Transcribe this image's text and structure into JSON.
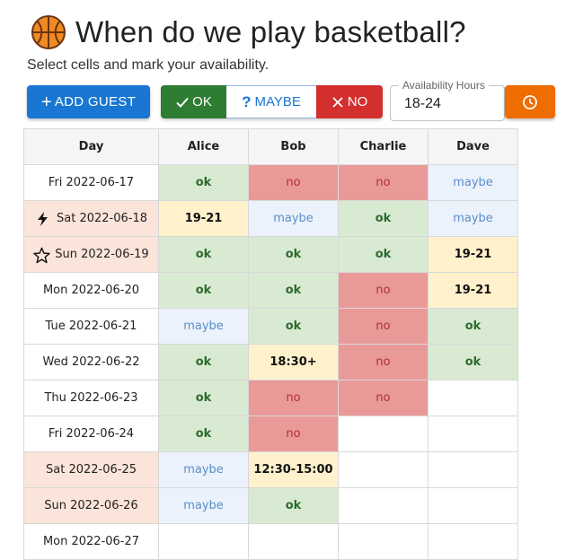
{
  "header": {
    "title": "When do we play basketball?",
    "icon": "basketball-icon",
    "subtitle": "Select cells and mark your availability."
  },
  "toolbar": {
    "add_guest_label": "ADD GUEST",
    "ok_label": "OK",
    "maybe_label": "MAYBE",
    "no_label": "NO",
    "availability_label": "Availability Hours",
    "availability_value": "18-24",
    "clock_icon": "clock-icon"
  },
  "colors": {
    "primary": "#1976d2",
    "ok": "#2e7d32",
    "no": "#d32f2f",
    "clock": "#ef6c00",
    "cell_ok": "#d9ead3",
    "cell_no": "#ea9999",
    "cell_maybe": "#ebf2fc",
    "cell_hours": "#fff1cc",
    "weekend": "#fbe4d9"
  },
  "table": {
    "headers": [
      "Day",
      "Alice",
      "Bob",
      "Charlie",
      "Dave"
    ],
    "rows": [
      {
        "day": "Fri 2022-06-17",
        "weekend": false,
        "icon": "",
        "cells": [
          {
            "v": "ok",
            "s": "ok"
          },
          {
            "v": "no",
            "s": "no"
          },
          {
            "v": "no",
            "s": "no"
          },
          {
            "v": "maybe",
            "s": "maybe"
          }
        ]
      },
      {
        "day": "Sat 2022-06-18",
        "weekend": true,
        "icon": "lightning-icon",
        "cells": [
          {
            "v": "19-21",
            "s": "hours"
          },
          {
            "v": "maybe",
            "s": "maybe"
          },
          {
            "v": "ok",
            "s": "ok"
          },
          {
            "v": "maybe",
            "s": "maybe"
          }
        ]
      },
      {
        "day": "Sun 2022-06-19",
        "weekend": true,
        "icon": "star-icon",
        "cells": [
          {
            "v": "ok",
            "s": "ok"
          },
          {
            "v": "ok",
            "s": "ok"
          },
          {
            "v": "ok",
            "s": "ok"
          },
          {
            "v": "19-21",
            "s": "hours"
          }
        ]
      },
      {
        "day": "Mon 2022-06-20",
        "weekend": false,
        "icon": "",
        "cells": [
          {
            "v": "ok",
            "s": "ok"
          },
          {
            "v": "ok",
            "s": "ok"
          },
          {
            "v": "no",
            "s": "no"
          },
          {
            "v": "19-21",
            "s": "hours"
          }
        ]
      },
      {
        "day": "Tue 2022-06-21",
        "weekend": false,
        "icon": "",
        "cells": [
          {
            "v": "maybe",
            "s": "maybe"
          },
          {
            "v": "ok",
            "s": "ok"
          },
          {
            "v": "no",
            "s": "no"
          },
          {
            "v": "ok",
            "s": "ok"
          }
        ]
      },
      {
        "day": "Wed 2022-06-22",
        "weekend": false,
        "icon": "",
        "cells": [
          {
            "v": "ok",
            "s": "ok"
          },
          {
            "v": "18:30+",
            "s": "hours"
          },
          {
            "v": "no",
            "s": "no"
          },
          {
            "v": "ok",
            "s": "ok"
          }
        ]
      },
      {
        "day": "Thu 2022-06-23",
        "weekend": false,
        "icon": "",
        "cells": [
          {
            "v": "ok",
            "s": "ok"
          },
          {
            "v": "no",
            "s": "no"
          },
          {
            "v": "no",
            "s": "no"
          },
          {
            "v": "",
            "s": "empty"
          }
        ]
      },
      {
        "day": "Fri 2022-06-24",
        "weekend": false,
        "icon": "",
        "cells": [
          {
            "v": "ok",
            "s": "ok"
          },
          {
            "v": "no",
            "s": "no"
          },
          {
            "v": "",
            "s": "empty"
          },
          {
            "v": "",
            "s": "empty"
          }
        ]
      },
      {
        "day": "Sat 2022-06-25",
        "weekend": true,
        "icon": "",
        "cells": [
          {
            "v": "maybe",
            "s": "maybe"
          },
          {
            "v": "12:30-15:00",
            "s": "hours"
          },
          {
            "v": "",
            "s": "empty"
          },
          {
            "v": "",
            "s": "empty"
          }
        ]
      },
      {
        "day": "Sun 2022-06-26",
        "weekend": true,
        "icon": "",
        "cells": [
          {
            "v": "maybe",
            "s": "maybe"
          },
          {
            "v": "ok",
            "s": "ok"
          },
          {
            "v": "",
            "s": "empty"
          },
          {
            "v": "",
            "s": "empty"
          }
        ]
      },
      {
        "day": "Mon 2022-06-27",
        "weekend": false,
        "icon": "",
        "cells": [
          {
            "v": "",
            "s": "empty"
          },
          {
            "v": "",
            "s": "empty"
          },
          {
            "v": "",
            "s": "empty"
          },
          {
            "v": "",
            "s": "empty"
          }
        ]
      }
    ]
  }
}
